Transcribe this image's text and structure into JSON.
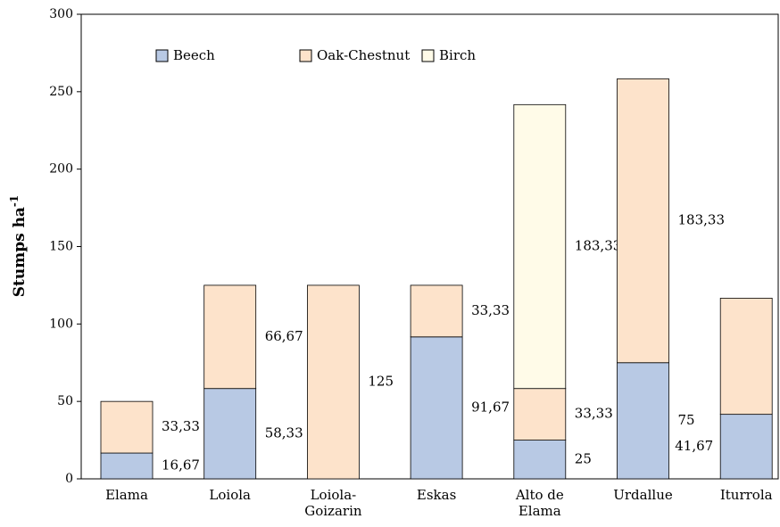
{
  "chart_data": {
    "type": "stacked_bar",
    "ylabel": "Stumps ha",
    "ylabel_superscript": "-1",
    "categories": [
      "Elama",
      "Loiola",
      "Loiola-\nGoizarin",
      "Eskas",
      "Alto de\nElama",
      "Urdallue",
      "Iturrola"
    ],
    "series": [
      {
        "name": "Beech",
        "color": "#b8c9e4",
        "values": [
          16.67,
          58.33,
          null,
          91.67,
          25,
          75,
          41.67
        ],
        "value_labels": [
          "16,67",
          "58,33",
          null,
          "91,67",
          "25",
          "75",
          "41,67"
        ]
      },
      {
        "name": "Oak-Chestnut",
        "color": "#fde3cb",
        "values": [
          33.33,
          66.67,
          125,
          33.33,
          33.33,
          183.33,
          75
        ],
        "value_labels": [
          "33,33",
          "66,67",
          "125",
          "33,33",
          "33,33",
          "183,33",
          "75"
        ]
      },
      {
        "name": "Birch",
        "color": "#fffbe8",
        "values": [
          null,
          null,
          null,
          null,
          183.33,
          null,
          null
        ],
        "value_labels": [
          null,
          null,
          null,
          null,
          "183,33",
          null,
          null
        ]
      }
    ],
    "ylim": [
      0,
      300
    ],
    "yticks": [
      0,
      50,
      100,
      150,
      200,
      250,
      300
    ],
    "legend": "top"
  }
}
